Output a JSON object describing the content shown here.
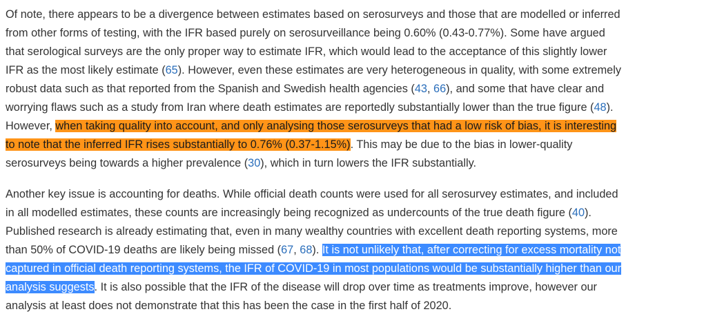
{
  "paragraphs": [
    {
      "lines": [
        [
          {
            "t": "Of note, there appears to be a divergence between estimates based on serosurveys and those that are modelled or inferred"
          }
        ],
        [
          {
            "t": "from other forms of testing, with the IFR based purely on serosurveillance being 0.60% (0.43-0.77%). Some have argued"
          }
        ],
        [
          {
            "t": "that serological surveys are the only proper way to estimate IFR, which would lead to the acceptance of this slightly lower"
          }
        ],
        [
          {
            "t": "IFR as the most likely estimate ("
          },
          {
            "t": "65",
            "ref": true
          },
          {
            "t": "). However, even these estimates are very heterogeneous in quality, with some extremely"
          }
        ],
        [
          {
            "t": "robust data such as that reported from the Spanish and Swedish health agencies ("
          },
          {
            "t": "43",
            "ref": true
          },
          {
            "t": ", "
          },
          {
            "t": "66",
            "ref": true
          },
          {
            "t": "), and some that have clear and"
          }
        ],
        [
          {
            "t": "worrying flaws such as a study from Iran where death estimates are reportedly substantially lower than the true figure ("
          },
          {
            "t": "48",
            "ref": true
          },
          {
            "t": ")."
          }
        ],
        [
          {
            "t": "However, "
          },
          {
            "t": "when taking quality into account, and only analysing those serosurveys that had a low risk of bias, it is interesting",
            "hl": "orange"
          }
        ],
        [
          {
            "t": "to note that the inferred IFR rises substantially to 0.76% (0.37-1.15%)",
            "hl": "orange"
          },
          {
            "t": ". This may be due to the bias in lower-quality"
          }
        ],
        [
          {
            "t": "serosurveys being towards a higher prevalence ("
          },
          {
            "t": "30",
            "ref": true
          },
          {
            "t": "), which in turn lowers the IFR substantially."
          }
        ]
      ]
    },
    {
      "lines": [
        [
          {
            "t": "Another key issue is accounting for deaths. While official death counts were used for all serosurvey estimates, and included"
          }
        ],
        [
          {
            "t": "in all modelled estimates, these counts are increasingly being recognized as undercounts of the true death figure ("
          },
          {
            "t": "40",
            "ref": true
          },
          {
            "t": ")."
          }
        ],
        [
          {
            "t": "Published research is already estimating that, even in many wealthy countries with excellent death reporting systems, more"
          }
        ],
        [
          {
            "t": "than 50% of COVID-19 deaths are likely being missed ("
          },
          {
            "t": "67",
            "ref": true
          },
          {
            "t": ", "
          },
          {
            "t": "68",
            "ref": true
          },
          {
            "t": "). "
          },
          {
            "t": "It is not unlikely that, after correcting for excess mortality not",
            "hl": "blue"
          }
        ],
        [
          {
            "t": "captured in official death reporting systems, the IFR of COVID-19 in most populations would be substantially higher than our",
            "hl": "blue"
          }
        ],
        [
          {
            "t": "analysis suggests",
            "hl": "blue"
          },
          {
            "t": ". It is also possible that the IFR of the disease will drop over time as treatments improve, however our"
          }
        ],
        [
          {
            "t": "analysis at least does not demonstrate that this has been the case in the first half of 2020."
          }
        ]
      ]
    }
  ],
  "colors": {
    "text": "#333333",
    "link": "#2a6ebb",
    "highlight_orange": "#ff9418",
    "highlight_blue": "#3d8bff"
  }
}
